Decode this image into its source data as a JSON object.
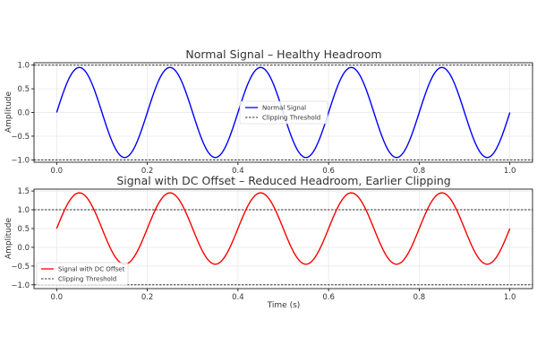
{
  "chart_data": [
    {
      "type": "line",
      "title": "Normal Signal – Healthy Headroom",
      "xlabel": "",
      "ylabel": "Amplitude",
      "xlim": [
        -0.05,
        1.05
      ],
      "ylim": [
        -1.05,
        1.05
      ],
      "xticks": [
        0.0,
        0.2,
        0.4,
        0.6,
        0.8,
        1.0
      ],
      "xtick_labels": [
        "0.0",
        "0.2",
        "0.4",
        "0.6",
        "0.8",
        "1.0"
      ],
      "yticks": [
        -1.0,
        -0.5,
        0.0,
        0.5,
        1.0
      ],
      "ytick_labels": [
        "−1.0",
        "−0.5",
        "0.0",
        "0.5",
        "1.0"
      ],
      "grid": true,
      "legend_position": "center",
      "series": [
        {
          "name": "Normal Signal",
          "color": "#0000ff",
          "style": "solid",
          "function": "sine",
          "frequency": 5,
          "amplitude": 0.95,
          "offset": 0.0,
          "x_range": [
            0.0,
            1.0
          ]
        },
        {
          "name": "Clipping Threshold",
          "color": "#333333",
          "style": "dashed",
          "hlines": [
            1.0,
            -1.0
          ]
        }
      ]
    },
    {
      "type": "line",
      "title": "Signal with DC Offset – Reduced Headroom, Earlier Clipping",
      "xlabel": "Time (s)",
      "ylabel": "Amplitude",
      "xlim": [
        -0.05,
        1.05
      ],
      "ylim": [
        -1.1,
        1.55
      ],
      "xticks": [
        0.0,
        0.2,
        0.4,
        0.6,
        0.8,
        1.0
      ],
      "xtick_labels": [
        "0.0",
        "0.2",
        "0.4",
        "0.6",
        "0.8",
        "1.0"
      ],
      "yticks": [
        -1.0,
        -0.5,
        0.0,
        0.5,
        1.0,
        1.5
      ],
      "ytick_labels": [
        "−1.0",
        "−0.5",
        "0.0",
        "0.5",
        "1.0",
        "1.5"
      ],
      "grid": true,
      "legend_position": "lower left",
      "series": [
        {
          "name": "Signal with DC Offset",
          "color": "#ff0000",
          "style": "solid",
          "function": "sine",
          "frequency": 5,
          "amplitude": 0.95,
          "offset": 0.5,
          "x_range": [
            0.0,
            1.0
          ]
        },
        {
          "name": "Clipping Threshold",
          "color": "#333333",
          "style": "dashed",
          "hlines": [
            1.0,
            -1.0
          ]
        }
      ]
    }
  ]
}
